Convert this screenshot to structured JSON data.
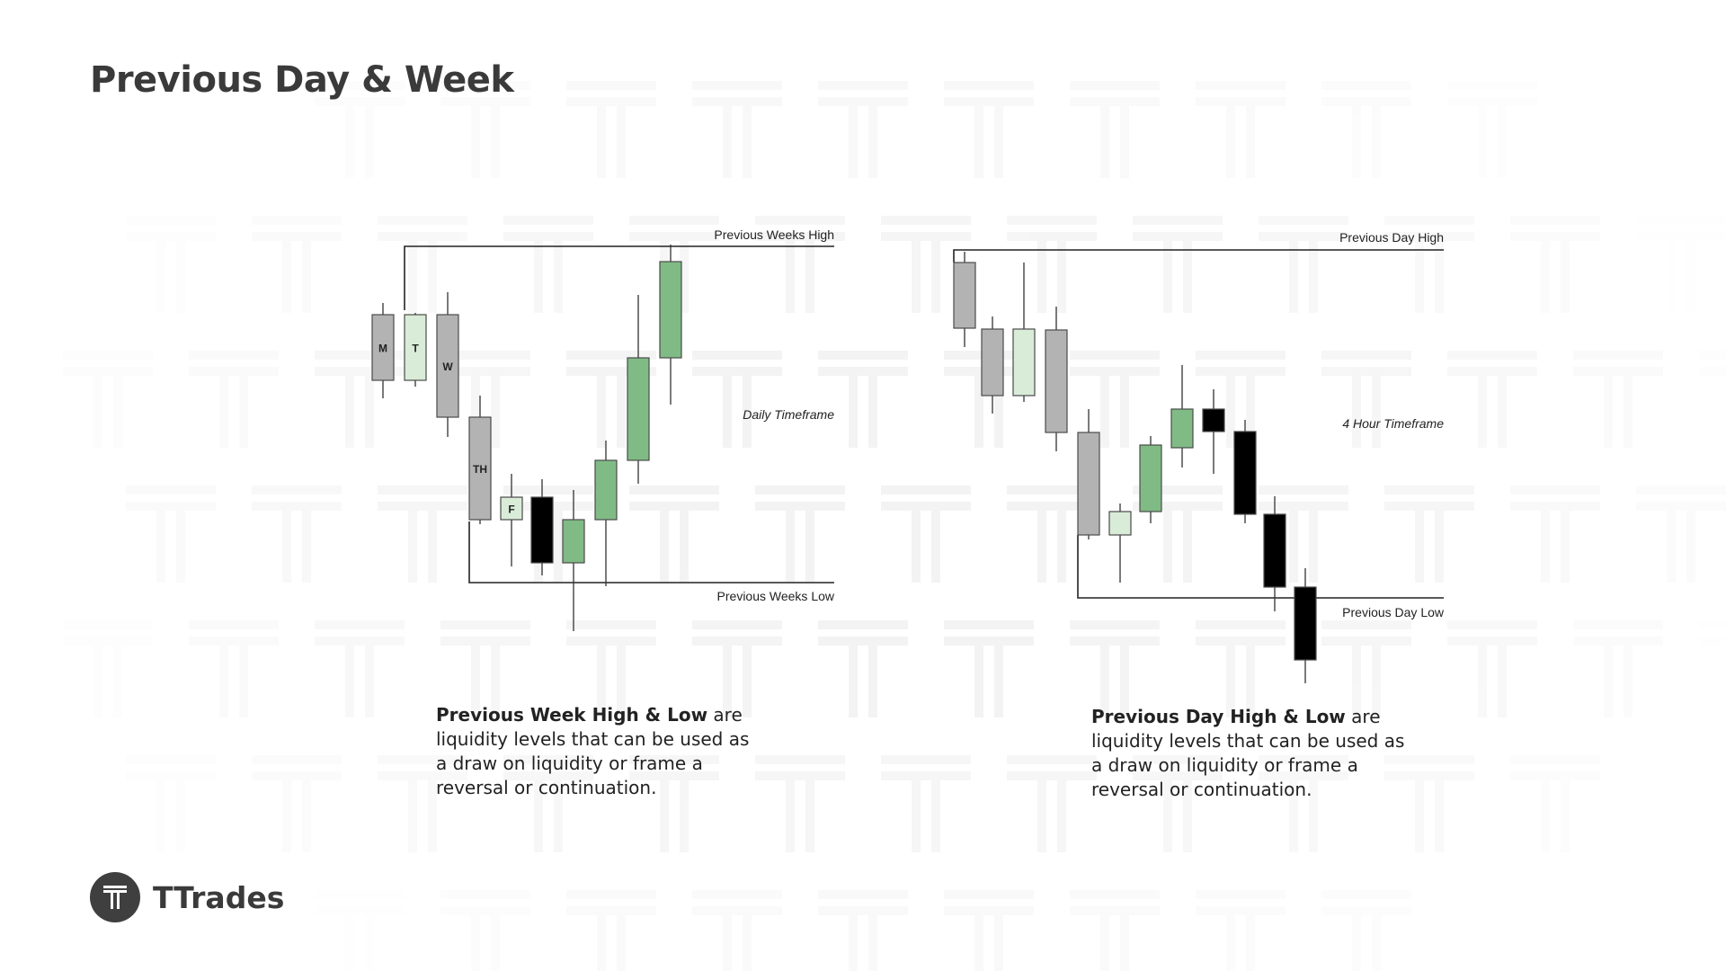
{
  "page": {
    "title": "Previous Day & Week"
  },
  "colors": {
    "bull": "#80bb86",
    "bull_light": "#d9ecd8",
    "neutral": "#b3b3b3",
    "bear": "#000000",
    "line": "#222222",
    "watermark": "#f3f3f3"
  },
  "left_diagram": {
    "timeframe": "Daily Timeframe",
    "high_label": "Previous Weeks High",
    "low_label": "Previous Weeks Low",
    "candles": [
      {
        "label": "M",
        "color": "neutral"
      },
      {
        "label": "T",
        "color": "bull_light"
      },
      {
        "label": "W",
        "color": "neutral"
      },
      {
        "label": "TH",
        "color": "neutral"
      },
      {
        "label": "F",
        "color": "bull_light"
      },
      {
        "label": "",
        "color": "bear"
      },
      {
        "label": "",
        "color": "bull"
      },
      {
        "label": "",
        "color": "bull"
      },
      {
        "label": "",
        "color": "bull"
      },
      {
        "label": "",
        "color": "bull"
      }
    ]
  },
  "right_diagram": {
    "timeframe": "4 Hour Timeframe",
    "high_label": "Previous Day High",
    "low_label": "Previous Day Low",
    "candles": [
      {
        "label": "",
        "color": "neutral"
      },
      {
        "label": "",
        "color": "neutral"
      },
      {
        "label": "",
        "color": "bull_light"
      },
      {
        "label": "",
        "color": "neutral"
      },
      {
        "label": "",
        "color": "neutral"
      },
      {
        "label": "",
        "color": "bull_light"
      },
      {
        "label": "",
        "color": "bull"
      },
      {
        "label": "",
        "color": "bull"
      },
      {
        "label": "",
        "color": "bear"
      },
      {
        "label": "",
        "color": "bear"
      },
      {
        "label": "",
        "color": "bear"
      },
      {
        "label": "",
        "color": "bear"
      }
    ]
  },
  "descriptions": {
    "left": {
      "bold": "Previous Week High & Low",
      "rest": " are liquidity levels that can be used as a draw on liquidity or frame a reversal or continuation."
    },
    "right": {
      "bold": "Previous Day High & Low",
      "rest": " are liquidity levels that can be used as a draw on liquidity or frame a reversal or continuation."
    }
  },
  "brand": {
    "name": "TTrades",
    "logo_icon": "t-logo-icon"
  }
}
